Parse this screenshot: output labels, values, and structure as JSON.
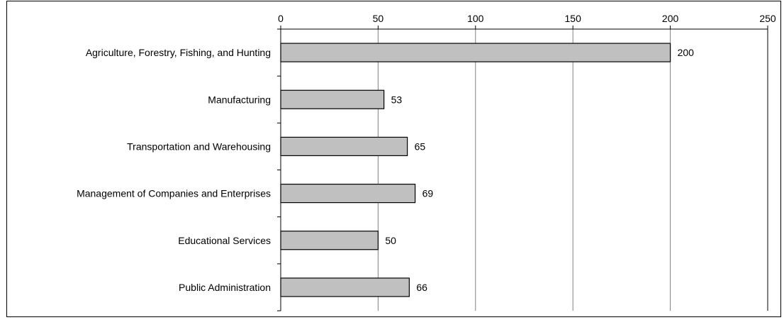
{
  "chart_data": {
    "type": "bar",
    "orientation": "horizontal",
    "categories": [
      "Agriculture, Forestry, Fishing, and Hunting",
      "Manufacturing",
      "Transportation and Warehousing",
      "Management of Companies and Enterprises",
      "Educational Services",
      "Public Administration"
    ],
    "values": [
      200,
      53,
      65,
      69,
      50,
      66
    ],
    "title": "",
    "xlabel": "",
    "ylabel": "",
    "xlim": [
      0,
      250
    ],
    "x_ticks": [
      "0",
      "50",
      "100",
      "150",
      "200",
      "250"
    ],
    "x_axis_position": "top",
    "grid": true,
    "legend": "none",
    "data_labels": true,
    "colors": {
      "bar_fill": "#c0c0c0",
      "bar_stroke": "#000000",
      "grid": "#808080",
      "axis": "#000000"
    }
  }
}
